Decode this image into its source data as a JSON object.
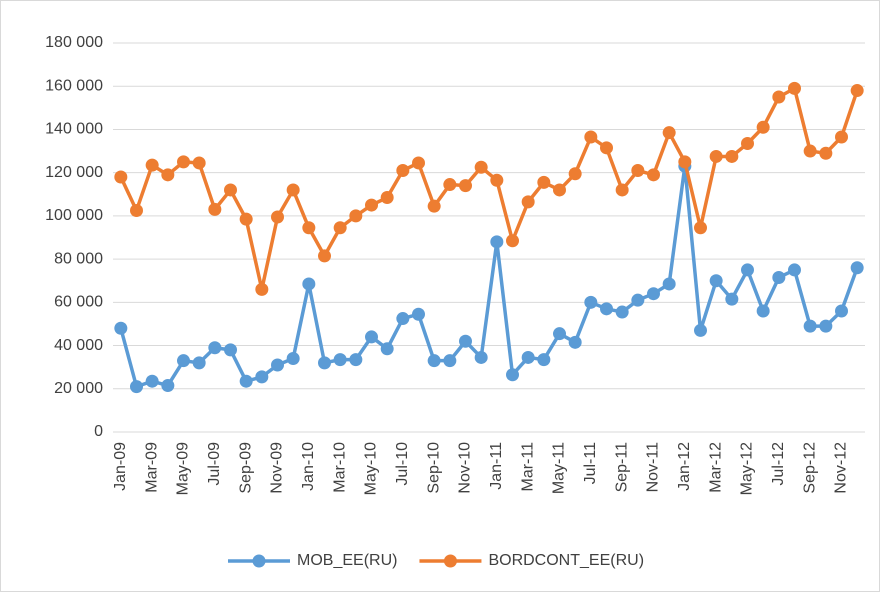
{
  "chart_data": {
    "type": "line",
    "categories": [
      "Jan-09",
      null,
      "Mar-09",
      null,
      "May-09",
      null,
      "Jul-09",
      null,
      "Sep-09",
      null,
      "Nov-09",
      null,
      "Jan-10",
      null,
      "Mar-10",
      null,
      "May-10",
      null,
      "Jul-10",
      null,
      "Sep-10",
      null,
      "Nov-10",
      null,
      "Jan-11",
      null,
      "Mar-11",
      null,
      "May-11",
      null,
      "Jul-11",
      null,
      "Sep-11",
      null,
      "Nov-11",
      null,
      "Jan-12",
      null,
      "Mar-12",
      null,
      "May-12",
      null,
      "Jul-12",
      null,
      "Sep-12",
      null,
      "Nov-12",
      null
    ],
    "series": [
      {
        "name": "MOB_EE(RU)",
        "color": "#5b9bd5",
        "values": [
          48000,
          21000,
          23500,
          21500,
          33000,
          32000,
          39000,
          38000,
          23500,
          25500,
          31000,
          34000,
          68500,
          32000,
          33500,
          33500,
          44000,
          38500,
          52500,
          54500,
          33000,
          33000,
          42000,
          34500,
          88000,
          26500,
          34500,
          33500,
          45500,
          41500,
          60000,
          57000,
          55500,
          61000,
          64000,
          68500,
          123000,
          47000,
          70000,
          61500,
          75000,
          56000,
          71500,
          75000,
          49000,
          49000,
          56000,
          76000
        ]
      },
      {
        "name": "BORDCONT_EE(RU)",
        "color": "#ed7d31",
        "values": [
          118000,
          102500,
          123500,
          119000,
          125000,
          124500,
          103000,
          112000,
          98500,
          66000,
          99500,
          112000,
          94500,
          81500,
          94500,
          100000,
          105000,
          108500,
          121000,
          124500,
          104500,
          114500,
          114000,
          122500,
          116500,
          88500,
          106500,
          115500,
          112000,
          119500,
          136500,
          131500,
          112000,
          121000,
          119000,
          138500,
          125000,
          94500,
          127500,
          127500,
          133500,
          141000,
          155000,
          159000,
          130000,
          129000,
          136500,
          158000
        ]
      }
    ],
    "ylim": [
      0,
      180000
    ],
    "yticks": [
      0,
      {
        "value": 20000,
        "label": "20 000"
      },
      {
        "value": 40000,
        "label": "40 000"
      },
      {
        "value": 60000,
        "label": "60 000"
      },
      {
        "value": 80000,
        "label": "80 000"
      },
      {
        "value": 100000,
        "label": "100 000"
      },
      {
        "value": 120000,
        "label": "120 000"
      },
      {
        "value": 140000,
        "label": "140 000"
      },
      {
        "value": 160000,
        "label": "160 000"
      },
      {
        "value": 180000,
        "label": "180 000"
      }
    ],
    "grid": true,
    "legend": "bottom"
  }
}
